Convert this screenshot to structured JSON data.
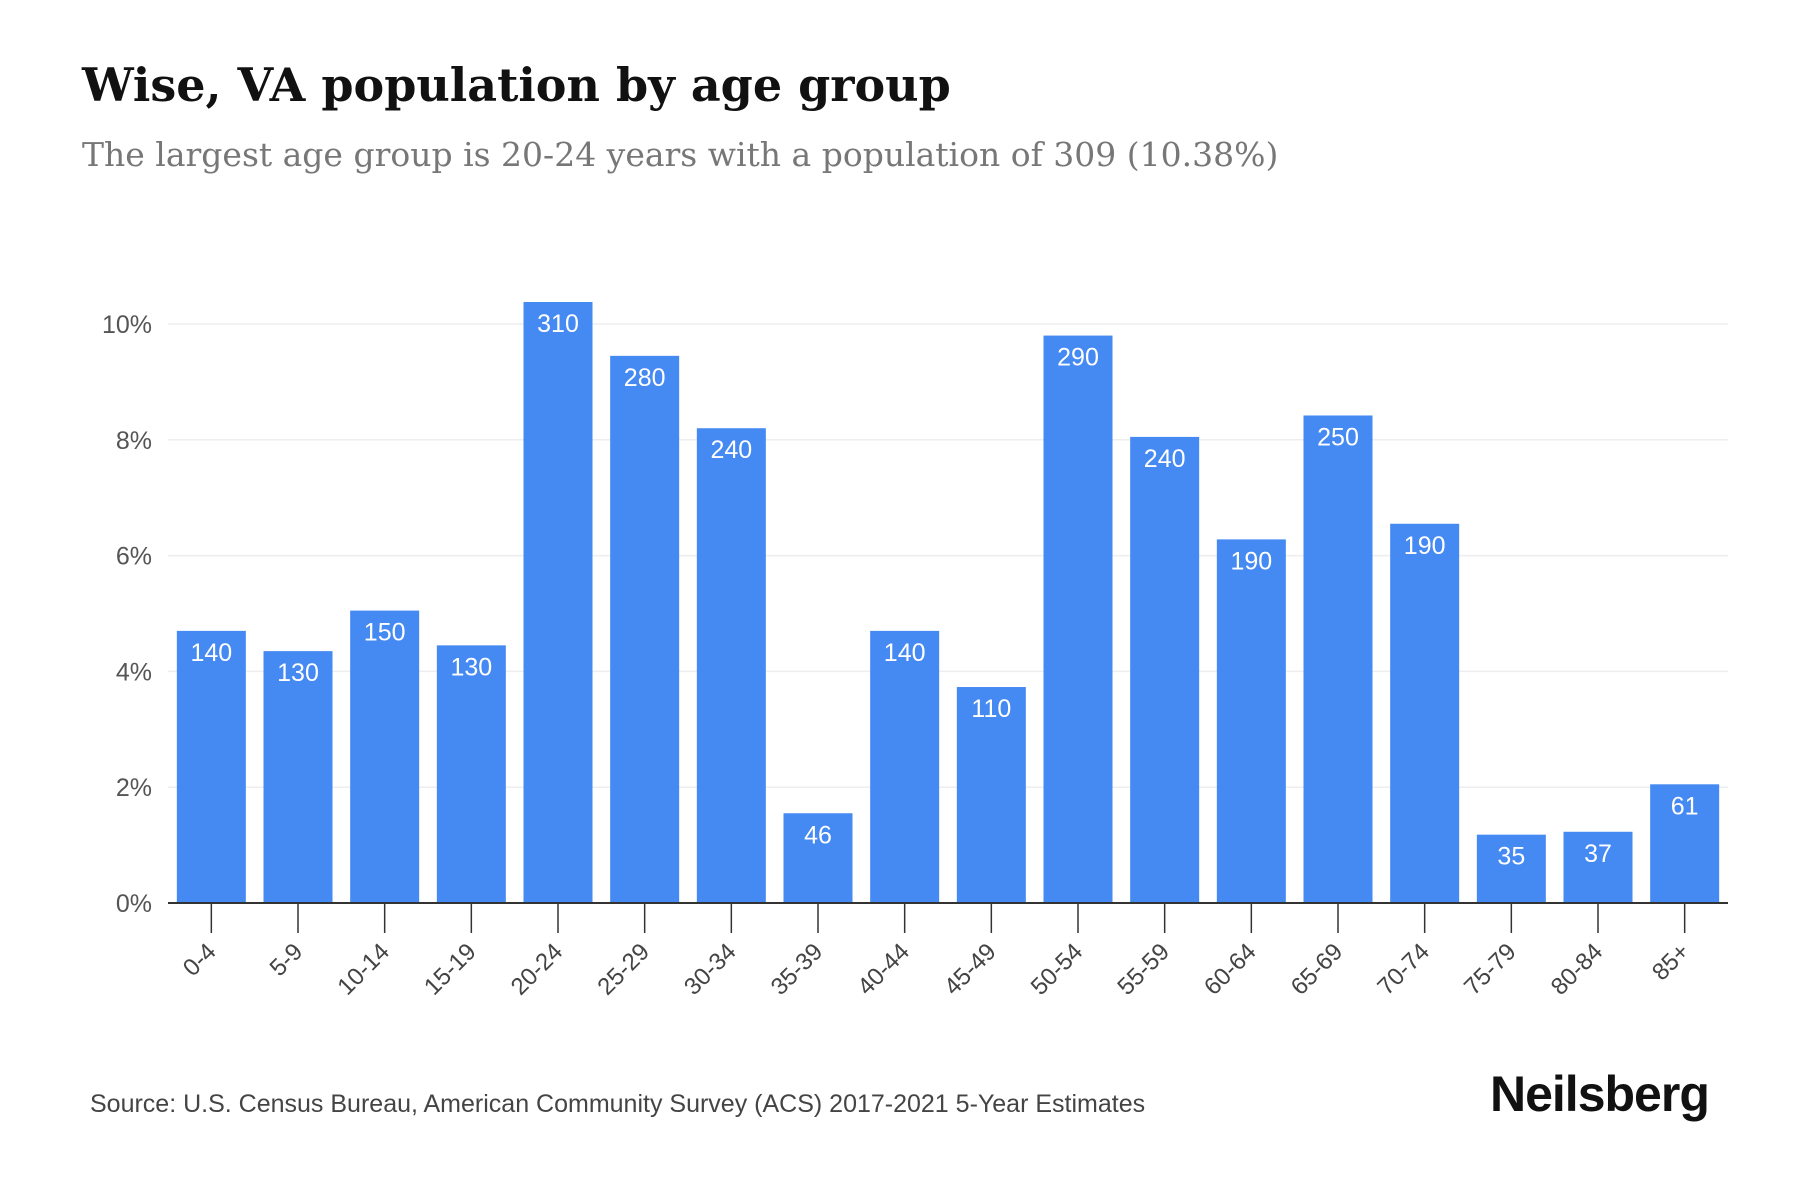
{
  "header": {
    "title": "Wise, VA population by age group",
    "subtitle": "The largest age group is 20-24 years with a population of 309 (10.38%)"
  },
  "footer": {
    "source": "Source: U.S. Census Bureau, American Community Survey (ACS) 2017-2021 5-Year Estimates",
    "brand": "Neilsberg"
  },
  "colors": {
    "bar": "#4589f3",
    "grid": "#eeeeee",
    "axis": "#333333",
    "label": "#ffffff"
  },
  "chart_data": {
    "type": "bar",
    "title": "Wise, VA population by age group",
    "subtitle": "The largest age group is 20-24 years with a population of 309 (10.38%)",
    "categories": [
      "0-4",
      "5-9",
      "10-14",
      "15-19",
      "20-24",
      "25-29",
      "30-34",
      "35-39",
      "40-44",
      "45-49",
      "50-54",
      "55-59",
      "60-64",
      "65-69",
      "70-74",
      "75-79",
      "80-84",
      "85+"
    ],
    "values": [
      4.7,
      4.35,
      5.05,
      4.45,
      10.38,
      9.45,
      8.2,
      1.55,
      4.7,
      3.73,
      9.8,
      8.05,
      6.28,
      8.42,
      6.55,
      1.18,
      1.23,
      2.05
    ],
    "data_labels": [
      "140",
      "130",
      "150",
      "130",
      "310",
      "280",
      "240",
      "46",
      "140",
      "110",
      "290",
      "240",
      "190",
      "250",
      "190",
      "35",
      "37",
      "61"
    ],
    "ylabel": "",
    "xlabel": "",
    "ylim": [
      0,
      10
    ],
    "yticks": [
      0,
      2,
      4,
      6,
      8,
      10
    ],
    "ytick_labels": [
      "0%",
      "2%",
      "4%",
      "6%",
      "8%",
      "10%"
    ],
    "grid": true,
    "legend": "none"
  }
}
